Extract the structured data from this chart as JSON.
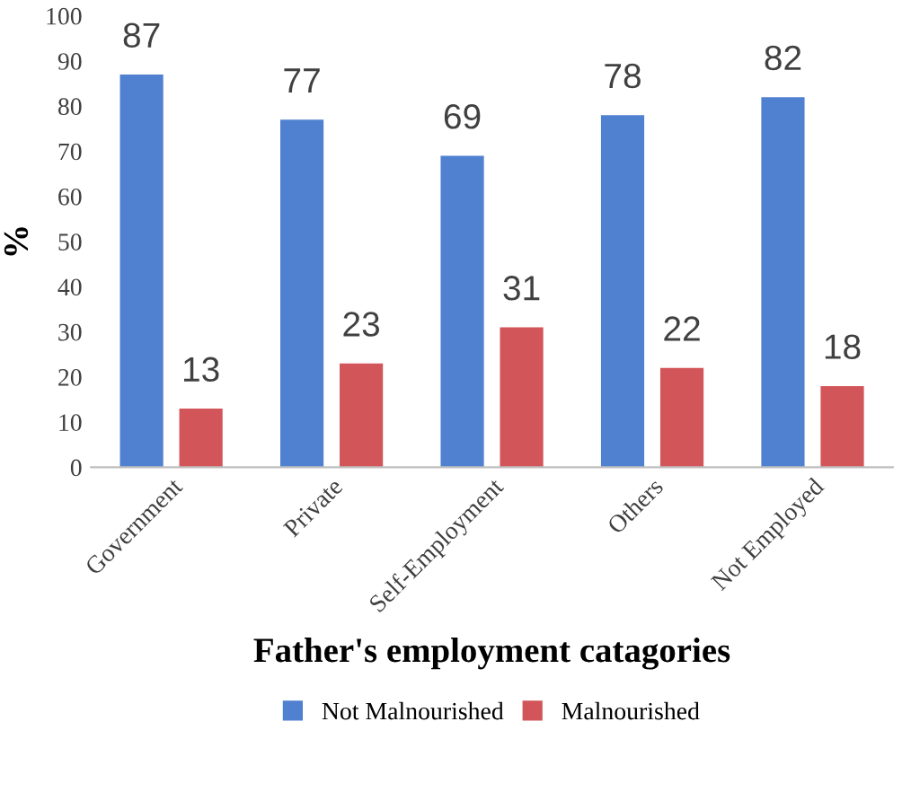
{
  "chart_data": {
    "type": "bar",
    "xlabel": "Father's employment catagories",
    "ylabel": "%",
    "categories": [
      "Government",
      "Private",
      "Self-Employment",
      "Others",
      "Not Employed"
    ],
    "series": [
      {
        "name": "Not Malnourished",
        "color": "#4f81d0",
        "values": [
          87,
          77,
          69,
          78,
          82
        ]
      },
      {
        "name": "Malnourished",
        "color": "#d2555a",
        "values": [
          13,
          23,
          31,
          22,
          18
        ]
      }
    ],
    "ylim": [
      0,
      100
    ],
    "yticks": [
      0,
      10,
      20,
      30,
      40,
      50,
      60,
      70,
      80,
      90,
      100
    ],
    "data_labels": true,
    "legend": "bottom",
    "grid": false
  }
}
